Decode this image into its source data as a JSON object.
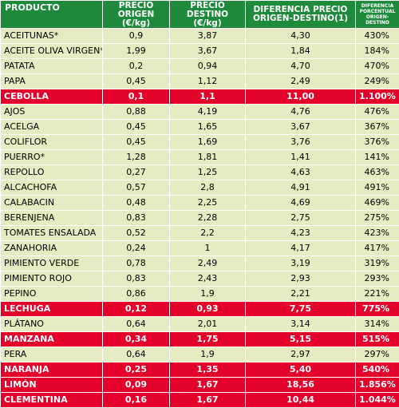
{
  "header": {
    "product": "PRODUCTO",
    "origin_price": "PRECIO ORIGEN (€/kg)",
    "dest_price": "PRECIO DESTINO (€/kg)",
    "difference": "DIFERENCIA PRECIO ORIGEN-DESTINO(1)",
    "percent_diff": "DIFERENCIA PORCENTUAL ORIGEN-DESTINO"
  },
  "rows": [
    {
      "name": "ACEITUNAS*",
      "origin": "0,9",
      "dest": "3,87",
      "diff": "4,30",
      "pct": "430%",
      "highlight": false
    },
    {
      "name": "ACEITE OLIVA VIRGEN*",
      "origin": "1,99",
      "dest": "3,67",
      "diff": "1,84",
      "pct": "184%",
      "highlight": false
    },
    {
      "name": "PATATA",
      "origin": "0,2",
      "dest": "0,94",
      "diff": "4,70",
      "pct": "470%",
      "highlight": false
    },
    {
      "name": "PAPA",
      "origin": "0,45",
      "dest": "1,12",
      "diff": "2,49",
      "pct": "249%",
      "highlight": false
    },
    {
      "name": "CEBOLLA",
      "origin": "0,1",
      "dest": "1,1",
      "diff": "11,00",
      "pct": "1.100%",
      "highlight": true
    },
    {
      "name": "AJOS",
      "origin": "0,88",
      "dest": "4,19",
      "diff": "4,76",
      "pct": "476%",
      "highlight": false
    },
    {
      "name": "ACELGA",
      "origin": "0,45",
      "dest": "1,65",
      "diff": "3,67",
      "pct": "367%",
      "highlight": false
    },
    {
      "name": "COLIFLOR",
      "origin": "0,45",
      "dest": "1,69",
      "diff": "3,76",
      "pct": "376%",
      "highlight": false
    },
    {
      "name": "PUERRO*",
      "origin": "1,28",
      "dest": "1,81",
      "diff": "1,41",
      "pct": "141%",
      "highlight": false
    },
    {
      "name": "REPOLLO",
      "origin": "0,27",
      "dest": "1,25",
      "diff": "4,63",
      "pct": "463%",
      "highlight": false
    },
    {
      "name": "ALCACHOFA",
      "origin": "0,57",
      "dest": "2,8",
      "diff": "4,91",
      "pct": "491%",
      "highlight": false
    },
    {
      "name": "CALABACIN",
      "origin": "0,48",
      "dest": "2,25",
      "diff": "4,69",
      "pct": "469%",
      "highlight": false
    },
    {
      "name": "BERENJENA",
      "origin": "0,83",
      "dest": "2,28",
      "diff": "2,75",
      "pct": "275%",
      "highlight": false
    },
    {
      "name": "TOMATES ENSALADA",
      "origin": "0,52",
      "dest": "2,2",
      "diff": "4,23",
      "pct": "423%",
      "highlight": false
    },
    {
      "name": "ZANAHORIA",
      "origin": "0,24",
      "dest": "1",
      "diff": "4,17",
      "pct": "417%",
      "highlight": false
    },
    {
      "name": "PIMIENTO VERDE",
      "origin": "0,78",
      "dest": "2,49",
      "diff": "3,19",
      "pct": "319%",
      "highlight": false
    },
    {
      "name": "PIMIENTO ROJO",
      "origin": "0,83",
      "dest": "2,43",
      "diff": "2,93",
      "pct": "293%",
      "highlight": false
    },
    {
      "name": "PEPINO",
      "origin": "0,86",
      "dest": "1,9",
      "diff": "2,21",
      "pct": "221%",
      "highlight": false
    },
    {
      "name": "LECHUGA",
      "origin": "0,12",
      "dest": "0,93",
      "diff": "7,75",
      "pct": "775%",
      "highlight": true
    },
    {
      "name": "PLÁTANO",
      "origin": "0,64",
      "dest": "2,01",
      "diff": "3,14",
      "pct": "314%",
      "highlight": false
    },
    {
      "name": "MANZANA",
      "origin": "0,34",
      "dest": "1,75",
      "diff": "5,15",
      "pct": "515%",
      "highlight": true
    },
    {
      "name": "PERA",
      "origin": "0,64",
      "dest": "1,9",
      "diff": "2,97",
      "pct": "297%",
      "highlight": false
    },
    {
      "name": "NARANJA",
      "origin": "0,25",
      "dest": "1,35",
      "diff": "5,40",
      "pct": "540%",
      "highlight": true
    },
    {
      "name": "LIMÓN",
      "origin": "0,09",
      "dest": "1,67",
      "diff": "18,56",
      "pct": "1.856%",
      "highlight": true
    },
    {
      "name": "CLEMENTINA",
      "origin": "0,16",
      "dest": "1,67",
      "diff": "10,44",
      "pct": "1.044%",
      "highlight": true
    }
  ],
  "colors": {
    "header_bg": "#1f8a3c",
    "row_bg": "#e5ecc2",
    "highlight_bg": "#e3002b"
  }
}
